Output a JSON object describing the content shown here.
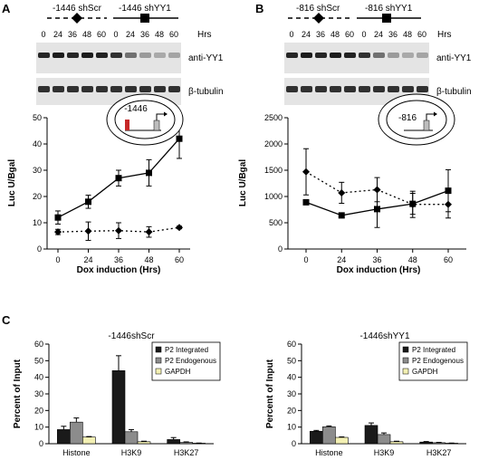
{
  "panels": {
    "A": {
      "letter": "A",
      "construct_scr": "-1446 shScr",
      "construct_yy1": "-1446 shYY1",
      "hrs_label": "Hrs",
      "blot_times": [
        "0",
        "24",
        "36",
        "48",
        "60",
        "0",
        "24",
        "36",
        "48",
        "60"
      ],
      "blot_labels": [
        "anti-YY1",
        "β-tubulin"
      ],
      "inset_label": "-1446",
      "chart_data": {
        "type": "line",
        "xlabel": "Dox induction (Hrs)",
        "ylabel": "Luc U/Bgal",
        "categories": [
          "0",
          "24",
          "36",
          "48",
          "60"
        ],
        "ylim": [
          0,
          50
        ],
        "yticks": [
          0,
          10,
          20,
          30,
          40,
          50
        ],
        "series": [
          {
            "key": "scr",
            "style": "dotted",
            "marker": "diamond",
            "values": [
              6.5,
              6.8,
              7.0,
              6.5,
              8.2
            ],
            "err": [
              1.0,
              3.5,
              3.0,
              2.0,
              0.5
            ]
          },
          {
            "key": "yy1",
            "style": "solid",
            "marker": "square",
            "values": [
              12,
              18,
              27,
              29,
              42
            ],
            "err": [
              2.5,
              2.5,
              3.0,
              5.0,
              7.5
            ]
          }
        ]
      }
    },
    "B": {
      "letter": "B",
      "construct_scr": "-816 shScr",
      "construct_yy1": "-816 shYY1",
      "hrs_label": "Hrs",
      "blot_times": [
        "0",
        "24",
        "36",
        "48",
        "60",
        "0",
        "24",
        "36",
        "48",
        "60"
      ],
      "blot_labels": [
        "anti-YY1",
        "β-tubulin"
      ],
      "inset_label": "-816",
      "chart_data": {
        "type": "line",
        "xlabel": "Dox induction (Hrs)",
        "ylabel": "Luc U/Bgal",
        "categories": [
          "0",
          "24",
          "36",
          "48",
          "60"
        ],
        "ylim": [
          0,
          2500
        ],
        "yticks": [
          0,
          500,
          1000,
          1500,
          2000,
          2500
        ],
        "series": [
          {
            "key": "scr",
            "style": "dotted",
            "marker": "diamond",
            "values": [
              1470,
              1070,
              1130,
              850,
              850
            ],
            "err": [
              440,
              200,
              230,
              250,
              260
            ]
          },
          {
            "key": "yy1",
            "style": "solid",
            "marker": "square",
            "values": [
              890,
              640,
              760,
              860,
              1110
            ],
            "err": [
              40,
              20,
              350,
              200,
              400
            ]
          }
        ]
      }
    },
    "C": {
      "letter": "C",
      "charts": [
        {
          "title": "-1446shScr",
          "chart_data": {
            "type": "bar",
            "ylabel": "Percent of Input",
            "categories": [
              "Histone",
              "H3K9",
              "H3K27"
            ],
            "ylim": [
              0,
              60
            ],
            "yticks": [
              0,
              10,
              20,
              30,
              40,
              50,
              60
            ],
            "series": [
              {
                "name": "P2 Integrated",
                "color": "#1a1a1a",
                "values": [
                  8.5,
                  44,
                  2.5
                ],
                "err": [
                  2,
                  9,
                  1.2
                ]
              },
              {
                "name": "P2 Endogenous",
                "color": "#8c8c8c",
                "values": [
                  13,
                  7.2,
                  0.8
                ],
                "err": [
                  2.5,
                  1.3,
                  0.3
                ]
              },
              {
                "name": "GAPDH",
                "color": "#f3f0b3",
                "values": [
                  4,
                  1.2,
                  0.3
                ],
                "err": [
                  0.3,
                  0.3,
                  0.1
                ]
              }
            ]
          }
        },
        {
          "title": "-1446shYY1",
          "chart_data": {
            "type": "bar",
            "ylabel": "Percent of Input",
            "categories": [
              "Histone",
              "H3K9",
              "H3K27"
            ],
            "ylim": [
              0,
              60
            ],
            "yticks": [
              0,
              10,
              20,
              30,
              40,
              50,
              60
            ],
            "series": [
              {
                "name": "P2 Integrated",
                "color": "#1a1a1a",
                "values": [
                  7.5,
                  11,
                  1
                ],
                "err": [
                  0.5,
                  1.5,
                  0.3
                ]
              },
              {
                "name": "P2 Endogenous",
                "color": "#8c8c8c",
                "values": [
                  10.2,
                  5.5,
                  0.6
                ],
                "err": [
                  0.5,
                  1.0,
                  0.2
                ]
              },
              {
                "name": "GAPDH",
                "color": "#f3f0b3",
                "values": [
                  3.8,
                  1.2,
                  0.3
                ],
                "err": [
                  0.3,
                  0.3,
                  0.1
                ]
              }
            ]
          }
        }
      ]
    }
  }
}
